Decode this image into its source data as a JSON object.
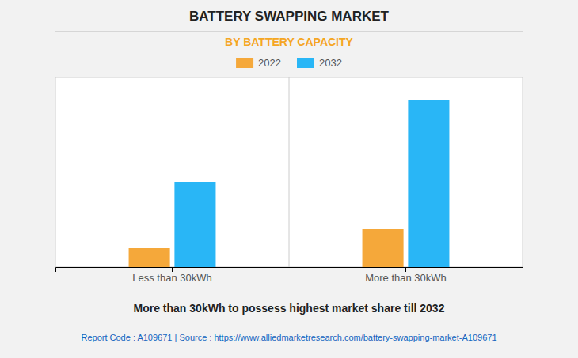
{
  "chart_data": {
    "type": "bar",
    "title": "BATTERY SWAPPING MARKET",
    "subtitle": "BY BATTERY CAPACITY",
    "categories": [
      "Less than 30kWh",
      "More than 30kWh"
    ],
    "series": [
      {
        "name": "2022",
        "color": "#F5A83A",
        "values": [
          0.1,
          0.2
        ]
      },
      {
        "name": "2032",
        "color": "#29B6F6",
        "values": [
          0.45,
          0.88
        ]
      }
    ],
    "ylim": [
      0,
      1.0
    ],
    "grid": false,
    "legend": "top",
    "tick_labels": "x",
    "annotations": [
      "More than 30kWh to possess highest market share till 2032",
      "Report Code : A109671  |  Source : https://www.alliedmarketresearch.com/battery-swapping-market-A109671"
    ]
  }
}
